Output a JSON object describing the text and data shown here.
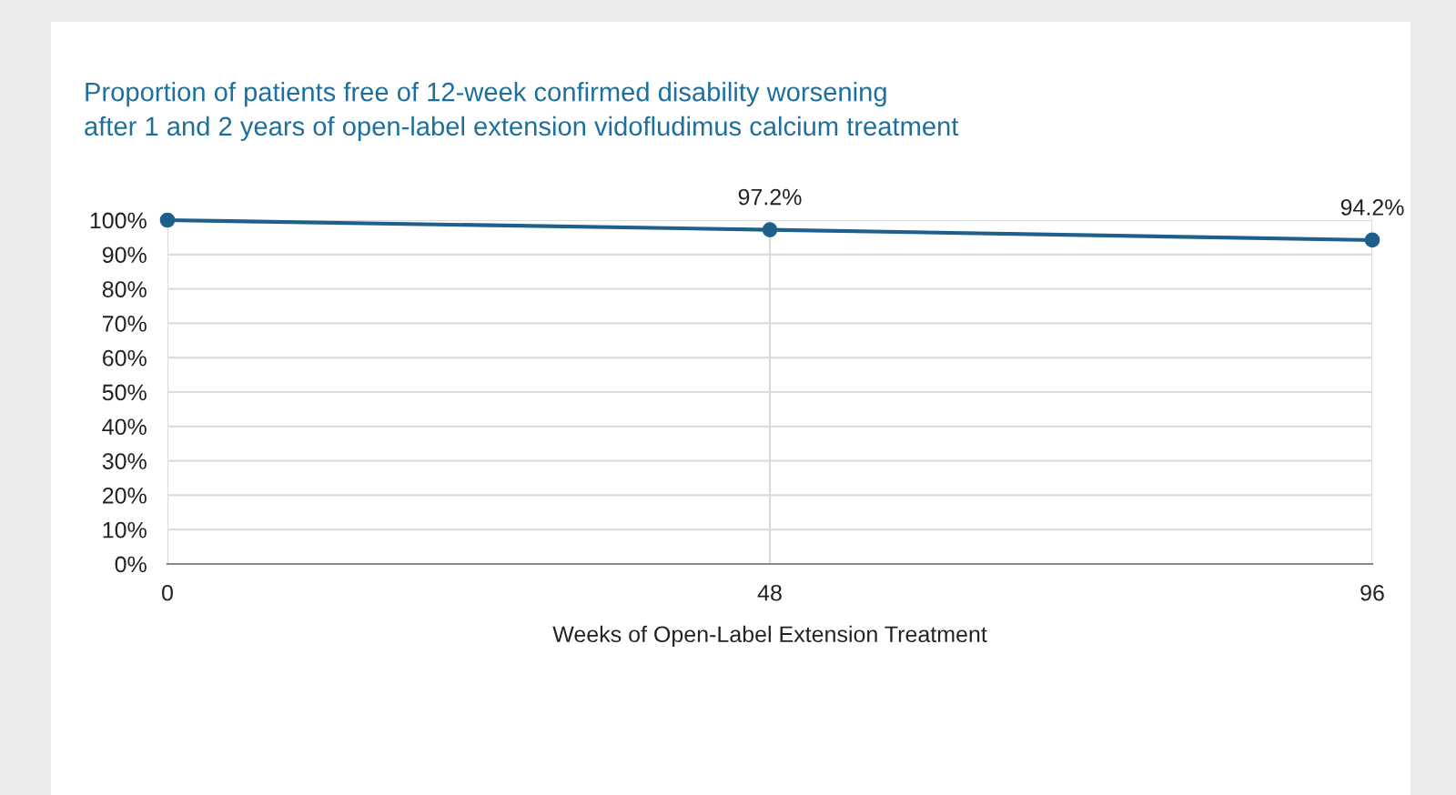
{
  "chart_data": {
    "type": "line",
    "title": "Proportion of patients free of 12-week confirmed disability worsening\nafter 1 and 2 years of open-label extension vidofludimus calcium treatment",
    "xlabel": "Weeks of Open-Label Extension Treatment",
    "x": [
      0,
      48,
      96
    ],
    "series": [
      {
        "color": "#1f5f8b",
        "values": [
          100,
          97.2,
          94.2
        ],
        "value_labels": [
          null,
          "97.2%",
          "94.2%"
        ]
      }
    ],
    "xlim": [
      0,
      96
    ],
    "xticks": [
      0,
      48,
      96
    ],
    "ylim": [
      0,
      100
    ],
    "yticks": [
      {
        "value": 0,
        "label": "0%"
      },
      {
        "value": 10,
        "label": "10%"
      },
      {
        "value": 20,
        "label": "20%"
      },
      {
        "value": 30,
        "label": "30%"
      },
      {
        "value": 40,
        "label": "40%"
      },
      {
        "value": 50,
        "label": "50%"
      },
      {
        "value": 60,
        "label": "60%"
      },
      {
        "value": 70,
        "label": "70%"
      },
      {
        "value": 80,
        "label": "80%"
      },
      {
        "value": 90,
        "label": "90%"
      },
      {
        "value": 100,
        "label": "100%"
      }
    ],
    "grid": true,
    "marker": "circle",
    "line_style": "solid"
  }
}
